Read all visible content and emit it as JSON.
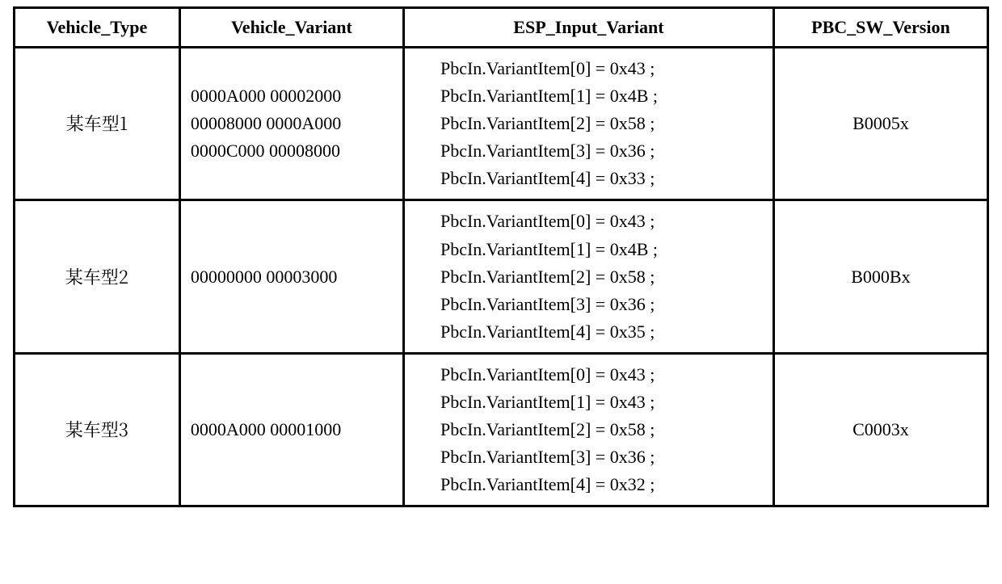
{
  "table": {
    "columns": {
      "vehicle_type": "Vehicle_Type",
      "vehicle_variant": "Vehicle_Variant",
      "esp_input_variant": "ESP_Input_Variant",
      "pbc_sw_version": "PBC_SW_Version"
    },
    "rows": [
      {
        "vehicle_type": "某车型1",
        "variant_line1": "0000A000 00002000",
        "variant_line2": "00008000 0000A000",
        "variant_line3": "0000C000 00008000",
        "esp_line0": "PbcIn.VariantItem[0] = 0x43 ;",
        "esp_line1": "PbcIn.VariantItem[1] = 0x4B ;",
        "esp_line2": "PbcIn.VariantItem[2] = 0x58 ;",
        "esp_line3": "PbcIn.VariantItem[3] = 0x36 ;",
        "esp_line4": "PbcIn.VariantItem[4] = 0x33 ;",
        "pbc_sw": "B0005x"
      },
      {
        "vehicle_type": "某车型2",
        "variant_line1": "00000000 00003000",
        "variant_line2": "",
        "variant_line3": "",
        "esp_line0": "PbcIn.VariantItem[0] = 0x43 ;",
        "esp_line1": "PbcIn.VariantItem[1] = 0x4B ;",
        "esp_line2": "PbcIn.VariantItem[2] = 0x58 ;",
        "esp_line3": "PbcIn.VariantItem[3] = 0x36 ;",
        "esp_line4": "PbcIn.VariantItem[4] = 0x35 ;",
        "pbc_sw": "B000Bx"
      },
      {
        "vehicle_type": "某车型3",
        "variant_line1": "0000A000 00001000",
        "variant_line2": "",
        "variant_line3": "",
        "esp_line0": "PbcIn.VariantItem[0] = 0x43 ;",
        "esp_line1": "PbcIn.VariantItem[1] = 0x43 ;",
        "esp_line2": "PbcIn.VariantItem[2] = 0x58 ;",
        "esp_line3": "PbcIn.VariantItem[3] = 0x36 ;",
        "esp_line4": "PbcIn.VariantItem[4] = 0x32 ;",
        "pbc_sw": "C0003x"
      }
    ],
    "border_color": "#000000",
    "background_color": "#ffffff",
    "font_family": "Times New Roman",
    "header_fontsize": 22,
    "cell_fontsize": 22
  }
}
